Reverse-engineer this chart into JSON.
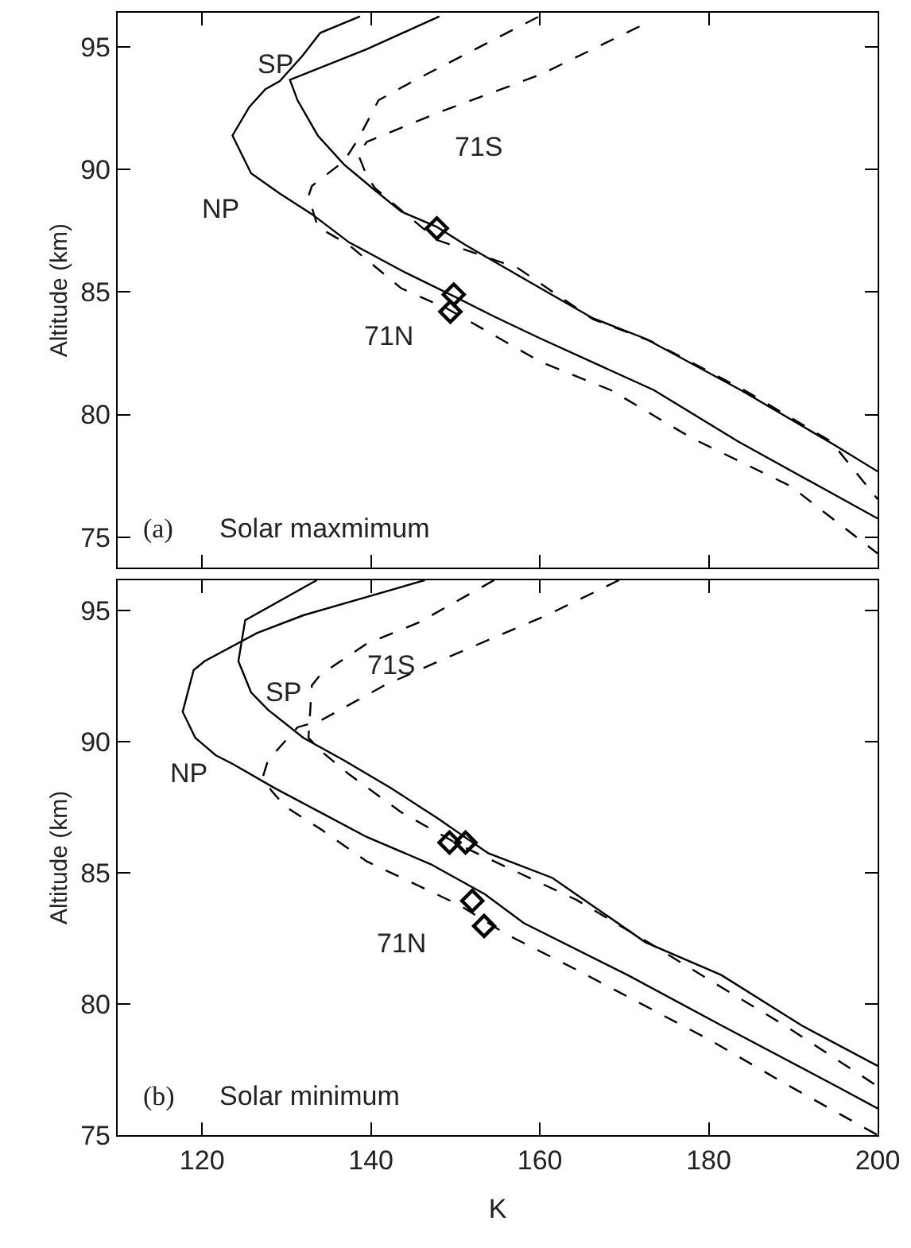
{
  "chart_data": [
    {
      "type": "line",
      "xlim": [
        110,
        200
      ],
      "xticks": [
        120,
        140,
        160,
        180,
        200
      ],
      "ylim": [
        73.75,
        96.4
      ],
      "yticks": [
        95,
        90,
        85,
        80,
        75
      ],
      "ylabel": "Altitude (km)",
      "tick_labels": "y",
      "grid": false,
      "legend": false,
      "series": [
        {
          "name": "NP",
          "line_style": "solid",
          "color": "#000000",
          "x": [
            138.7,
            134.0,
            131.9,
            129.2,
            127.5,
            125.6,
            123.6,
            125.8,
            129.2,
            133.0,
            137.4,
            143.6,
            149.8,
            154.6,
            160.1,
            173.5,
            183.5,
            200
          ],
          "values": [
            96.25,
            95.58,
            94.65,
            93.61,
            93.28,
            92.56,
            91.39,
            89.85,
            89.02,
            88.18,
            87.03,
            85.88,
            84.83,
            84.0,
            83.1,
            81.0,
            78.9,
            75.76
          ]
        },
        {
          "name": "SP",
          "line_style": "solid",
          "color": "#000000",
          "x": [
            148.1,
            139.5,
            130.4,
            131.3,
            133.7,
            136.8,
            140.2,
            143.6,
            147.8,
            151.2,
            160.1,
            166.3,
            172.5,
            183.8,
            194.8,
            200
          ],
          "values": [
            96.25,
            94.91,
            93.66,
            92.83,
            91.39,
            90.21,
            89.23,
            88.28,
            87.66,
            86.92,
            85.15,
            83.93,
            83.1,
            81.0,
            78.78,
            77.68
          ]
        },
        {
          "name": "71N",
          "line_style": "dashed",
          "color": "#000000",
          "x": [
            159.8,
            145.0,
            140.9,
            138.5,
            136.8,
            133.0,
            132.6,
            133.7,
            137.4,
            143.6,
            149.1,
            160.1,
            168.4,
            178.0,
            189.7,
            200
          ],
          "values": [
            96.23,
            93.61,
            92.83,
            91.25,
            90.34,
            89.33,
            88.91,
            87.66,
            86.92,
            85.15,
            84.31,
            82.15,
            81.0,
            79.04,
            77.08,
            74.33
          ]
        },
        {
          "name": "71S",
          "line_style": "dashed",
          "color": "#000000",
          "x": [
            171.8,
            160.1,
            147.8,
            139.5,
            138.5,
            139.5,
            140.5,
            147.8,
            157.4,
            166.3,
            173.2,
            184.2,
            194.5,
            200
          ],
          "values": [
            95.84,
            93.88,
            92.3,
            91.13,
            90.6,
            89.75,
            89.23,
            87.13,
            85.98,
            83.89,
            82.99,
            81.0,
            78.9,
            76.55
          ]
        },
        {
          "type": "scatter",
          "marker": "diamond",
          "color": "#000000",
          "x": [
            147.8,
            149.8,
            149.4
          ],
          "values": [
            87.6,
            84.9,
            84.2
          ]
        }
      ],
      "annotations": [
        "(a)",
        "Solar maxmimum"
      ]
    },
    {
      "type": "line",
      "xlim": [
        110,
        200
      ],
      "xticks": [
        120,
        140,
        160,
        180,
        200
      ],
      "ylim": [
        75,
        96.15
      ],
      "yticks": [
        95,
        90,
        85,
        80,
        75
      ],
      "xlabel": "K",
      "ylabel": "Altitude (km)",
      "grid": false,
      "legend": false,
      "series": [
        {
          "name": "NP",
          "line_style": "solid",
          "color": "#000000",
          "x": [
            146.4,
            132.0,
            126.5,
            120.3,
            119.0,
            117.7,
            119.2,
            121.6,
            123.7,
            128.5,
            134.0,
            139.5,
            147.1,
            153.5,
            158.1,
            170.4,
            181.5,
            194.5,
            200
          ],
          "values": [
            96.15,
            94.81,
            94.13,
            93.06,
            92.72,
            91.13,
            90.14,
            89.48,
            89.13,
            88.24,
            87.3,
            86.36,
            85.32,
            84.18,
            83.08,
            81.1,
            79.18,
            76.97,
            76.02
          ]
        },
        {
          "name": "SP",
          "line_style": "solid",
          "color": "#000000",
          "x": [
            133.6,
            125.1,
            124.3,
            125.8,
            127.8,
            132.0,
            136.8,
            142.3,
            147.8,
            153.9,
            161.5,
            172.5,
            181.5,
            191.0,
            200
          ],
          "values": [
            96.15,
            94.62,
            93.06,
            91.87,
            91.21,
            90.14,
            89.28,
            88.24,
            87.09,
            85.74,
            84.8,
            82.35,
            81.1,
            79.18,
            77.64
          ]
        },
        {
          "name": "71S",
          "line_style": "dashed",
          "color": "#000000",
          "x": [
            154.6,
            145.7,
            139.5,
            134.0,
            133.0,
            132.6,
            134.3,
            137.4,
            143.6,
            150.5,
            157.4,
            164.3,
            172.8,
            180.7,
            189.0,
            200
          ],
          "values": [
            96.15,
            94.54,
            93.73,
            92.54,
            92.14,
            90.14,
            89.58,
            88.75,
            87.3,
            86.05,
            85.01,
            83.97,
            82.35,
            80.79,
            79.18,
            76.86
          ]
        },
        {
          "name": "71N",
          "line_style": "dashed",
          "color": "#000000",
          "x": [
            169.4,
            160.8,
            149.1,
            141.6,
            134.0,
            131.3,
            127.8,
            127.2,
            128.2,
            129.9,
            134.0,
            139.5,
            145.0,
            150.5,
            156.0,
            164.3,
            180.1,
            189.0,
            200
          ],
          "values": [
            96.15,
            94.81,
            93.21,
            92.14,
            90.79,
            90.54,
            89.28,
            88.65,
            88.13,
            87.51,
            86.67,
            85.43,
            84.6,
            83.76,
            82.66,
            81.31,
            78.63,
            76.97,
            75.0
          ]
        },
        {
          "type": "scatter",
          "marker": "diamond",
          "color": "#000000",
          "x": [
            149.3,
            151.2,
            152.0,
            153.4
          ],
          "values": [
            86.15,
            86.15,
            83.93,
            82.97
          ]
        }
      ],
      "annotations": [
        "(b)",
        "Solar minimum"
      ]
    }
  ]
}
